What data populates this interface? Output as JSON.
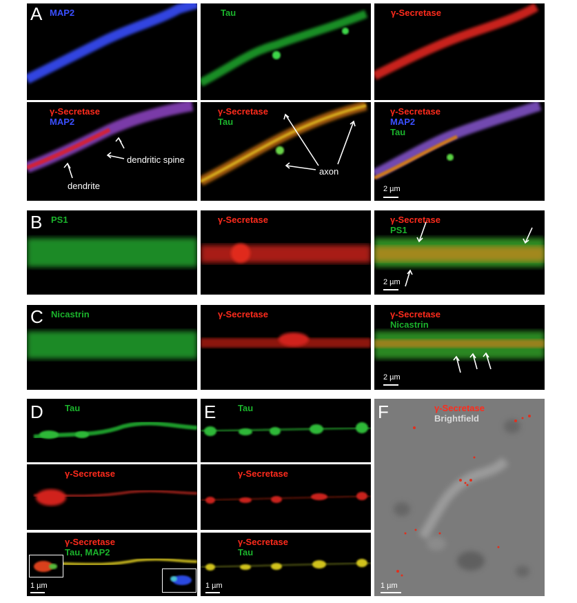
{
  "figure": {
    "panel_letters": [
      "A",
      "B",
      "C",
      "D",
      "E",
      "F"
    ],
    "row_a": {
      "top_labels": [
        "MAP2",
        "Tau",
        "γ-Secretase"
      ],
      "bottom_left_labels": [
        "γ-Secretase",
        "MAP2"
      ],
      "bottom_mid_labels": [
        "γ-Secretase",
        "Tau"
      ],
      "bottom_right_labels": [
        "γ-Secretase",
        "MAP2",
        "Tau"
      ],
      "annotations": {
        "dendrite": "dendrite",
        "spine": "dendritic spine",
        "axon": "axon"
      },
      "scale_bar": "2 µm"
    },
    "row_b": {
      "labels": [
        "PS1",
        "γ-Secretase",
        "γ-Secretase",
        "PS1"
      ],
      "scale_bar": "2 µm"
    },
    "row_c": {
      "labels": [
        "Nicastrin",
        "γ-Secretase",
        "γ-Secretase",
        "Nicastrin"
      ],
      "scale_bar": "2 µm"
    },
    "col_d": {
      "labels": [
        "Tau",
        "γ-Secretase",
        "γ-Secretase",
        "Tau, MAP2"
      ],
      "scale_bar": "1 µm"
    },
    "col_e": {
      "labels": [
        "Tau",
        "γ-Secretase",
        "γ-Secretase",
        "Tau"
      ],
      "scale_bar": "1 µm"
    },
    "panel_f": {
      "labels": [
        "γ-Secretase",
        "Brightfield"
      ],
      "scale_bar": "1 µm"
    }
  },
  "colors": {
    "red": "#ff2b1c",
    "green": "#1bb32c",
    "blue": "#3a4fff",
    "gray": "#7a7a7a"
  }
}
